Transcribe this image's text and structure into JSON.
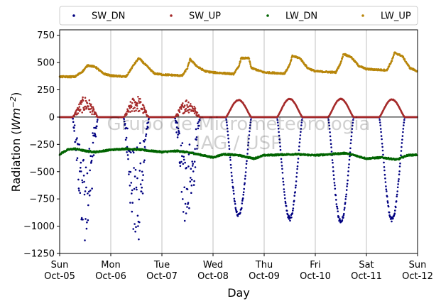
{
  "chart_data": {
    "type": "scatter",
    "xlabel": "Day",
    "ylabel_main": "Radiation (",
    "ylabel_unit": "Wm",
    "ylabel_exp": "−2",
    "ylabel_close": ")",
    "ylim": [
      -1250,
      800
    ],
    "xlim": [
      0,
      7
    ],
    "yticks": [
      750,
      500,
      250,
      0,
      -250,
      -500,
      -750,
      -1000,
      -1250
    ],
    "ytick_labels": [
      "750",
      "500",
      "250",
      "0",
      "−250",
      "−500",
      "−750",
      "−1000",
      "−1250"
    ],
    "xticks": [
      {
        "x": 0,
        "dow": "Sun",
        "date": "Oct-05"
      },
      {
        "x": 1,
        "dow": "Mon",
        "date": "Oct-06"
      },
      {
        "x": 2,
        "dow": "Tue",
        "date": "Oct-07"
      },
      {
        "x": 3,
        "dow": "Wed",
        "date": "Oct-08"
      },
      {
        "x": 4,
        "dow": "Thu",
        "date": "Oct-09"
      },
      {
        "x": 5,
        "dow": "Fri",
        "date": "Oct-10"
      },
      {
        "x": 6,
        "dow": "Sat",
        "date": "Oct-11"
      },
      {
        "x": 7,
        "dow": "Sun",
        "date": "Oct-12"
      }
    ],
    "grid": "vertical",
    "legend_placement": "top (above plot)",
    "watermark": [
      "Grupo de Micrometeorologia",
      "IAG / USP"
    ],
    "series": [
      {
        "name": "SW_DN",
        "color": "#000080",
        "daily_peak": [
          -1050,
          -1080,
          -950,
          -920,
          -950,
          -980,
          -960
        ],
        "noisy_days": [
          0,
          1,
          2
        ]
      },
      {
        "name": "SW_UP",
        "color": "#a52a2a",
        "daily_peak": [
          175,
          185,
          160,
          160,
          170,
          170,
          165
        ],
        "noisy_days": [
          0,
          1,
          2
        ]
      },
      {
        "name": "LW_DN",
        "color": "#006400",
        "points": [
          [
            0,
            -340
          ],
          [
            0.15,
            -300
          ],
          [
            0.3,
            -290
          ],
          [
            0.5,
            -310
          ],
          [
            0.7,
            -320
          ],
          [
            1,
            -300
          ],
          [
            1.3,
            -290
          ],
          [
            1.6,
            -300
          ],
          [
            2,
            -320
          ],
          [
            2.3,
            -310
          ],
          [
            2.6,
            -330
          ],
          [
            3,
            -370
          ],
          [
            3.2,
            -340
          ],
          [
            3.5,
            -350
          ],
          [
            3.8,
            -380
          ],
          [
            4,
            -350
          ],
          [
            4.3,
            -345
          ],
          [
            4.6,
            -340
          ],
          [
            5,
            -350
          ],
          [
            5.3,
            -340
          ],
          [
            5.6,
            -330
          ],
          [
            6,
            -380
          ],
          [
            6.3,
            -370
          ],
          [
            6.6,
            -390
          ],
          [
            6.8,
            -350
          ],
          [
            7,
            -345
          ]
        ]
      },
      {
        "name": "LW_UP",
        "color": "#b8860b",
        "points": [
          [
            0,
            370
          ],
          [
            0.3,
            370
          ],
          [
            0.45,
            420
          ],
          [
            0.55,
            475
          ],
          [
            0.7,
            460
          ],
          [
            0.85,
            400
          ],
          [
            1,
            380
          ],
          [
            1.3,
            370
          ],
          [
            1.45,
            480
          ],
          [
            1.55,
            540
          ],
          [
            1.7,
            470
          ],
          [
            1.85,
            400
          ],
          [
            2,
            390
          ],
          [
            2.4,
            380
          ],
          [
            2.5,
            450
          ],
          [
            2.55,
            530
          ],
          [
            2.7,
            460
          ],
          [
            2.85,
            420
          ],
          [
            3,
            410
          ],
          [
            3.4,
            395
          ],
          [
            3.5,
            460
          ],
          [
            3.55,
            540
          ],
          [
            3.7,
            540
          ],
          [
            3.75,
            450
          ],
          [
            4,
            410
          ],
          [
            4.4,
            400
          ],
          [
            4.5,
            480
          ],
          [
            4.55,
            560
          ],
          [
            4.7,
            540
          ],
          [
            4.85,
            450
          ],
          [
            5,
            420
          ],
          [
            5.4,
            410
          ],
          [
            5.5,
            500
          ],
          [
            5.55,
            580
          ],
          [
            5.7,
            550
          ],
          [
            5.85,
            470
          ],
          [
            6,
            440
          ],
          [
            6.4,
            430
          ],
          [
            6.5,
            520
          ],
          [
            6.55,
            590
          ],
          [
            6.7,
            560
          ],
          [
            6.85,
            450
          ],
          [
            7,
            420
          ]
        ]
      }
    ]
  }
}
